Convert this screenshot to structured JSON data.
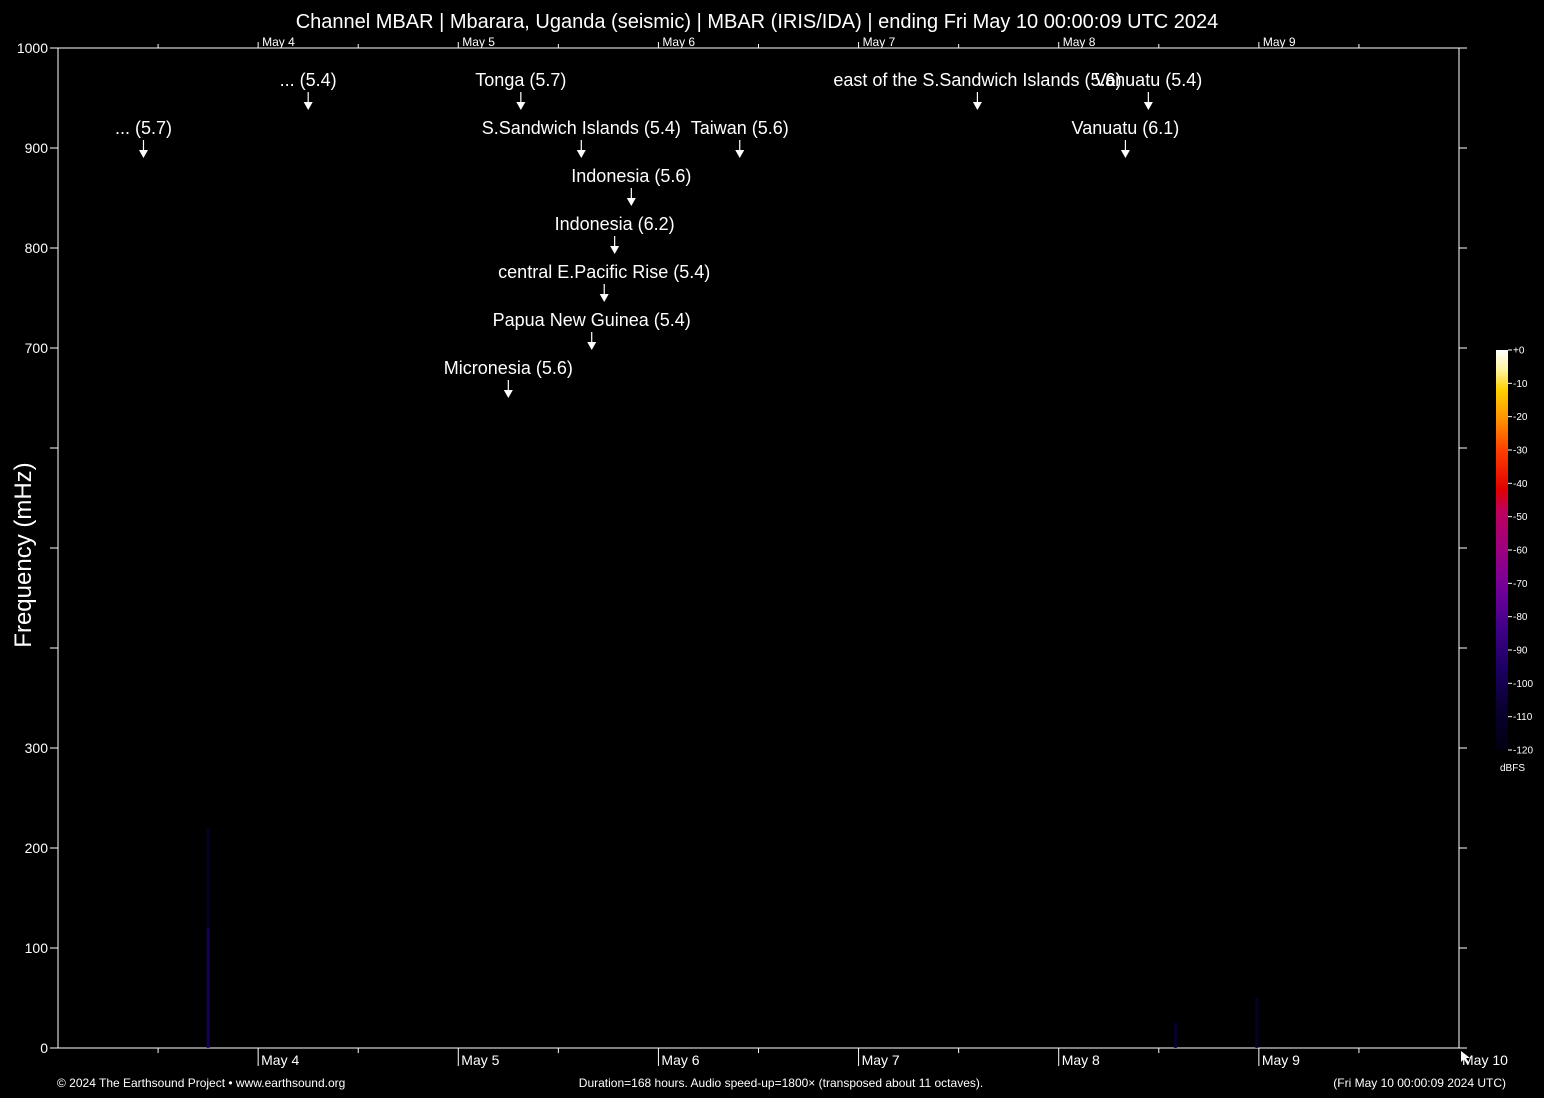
{
  "chart_data": {
    "type": "heatmap",
    "title": "Channel MBAR | Mbarara, Uganda (seismic) | MBAR (IRIS/IDA) | ending Fri May 10 00:00:09 UTC 2024",
    "ylabel": "Frequency (mHz)",
    "ylim": [
      0,
      1000
    ],
    "y_ticks": [
      0,
      100,
      200,
      300,
      700,
      800,
      900,
      1000
    ],
    "y_tick_positions": [
      0,
      100,
      200,
      300,
      400,
      500,
      600,
      700,
      800,
      900,
      1000
    ],
    "x_start": "2024-05-03T00:00:09Z",
    "x_end": "2024-05-10T00:00:09Z",
    "x_date_labels": [
      "May 4",
      "May 5",
      "May 6",
      "May 7",
      "May 8",
      "May 9",
      "May 10"
    ],
    "x_date_values": [
      "2024-05-04",
      "2024-05-05",
      "2024-05-06",
      "2024-05-07",
      "2024-05-08",
      "2024-05-09",
      "2024-05-10"
    ],
    "events": [
      {
        "label": "... (5.7)",
        "time": "2024-05-03 10:15",
        "row": 2
      },
      {
        "label": "... (5.4)",
        "time": "2024-05-04 06:00",
        "row": 1
      },
      {
        "label": "Tonga (5.7)",
        "time": "2024-05-05 07:30",
        "row": 1
      },
      {
        "label": "S.Sandwich Islands (5.4)",
        "time": "2024-05-05 14:45",
        "row": 2
      },
      {
        "label": "Indonesia (5.6)",
        "time": "2024-05-05 20:45",
        "row": 3
      },
      {
        "label": "Indonesia (6.2)",
        "time": "2024-05-05 18:45",
        "row": 4
      },
      {
        "label": "central E.Pacific Rise (5.4)",
        "time": "2024-05-05 17:30",
        "row": 5
      },
      {
        "label": "Papua New Guinea (5.4)",
        "time": "2024-05-05 16:00",
        "row": 6
      },
      {
        "label": "Micronesia (5.6)",
        "time": "2024-05-05 06:00",
        "row": 7
      },
      {
        "label": "Taiwan (5.6)",
        "time": "2024-05-06 09:45",
        "row": 2
      },
      {
        "label": "east of the S.Sandwich Islands (5.6)",
        "time": "2024-05-07 14:15",
        "row": 1
      },
      {
        "label": "Vanuatu (5.4)",
        "time": "2024-05-08 10:45",
        "row": 1
      },
      {
        "label": "Vanuatu (6.1)",
        "time": "2024-05-08 08:00",
        "row": 2
      }
    ],
    "colorbar": {
      "unit": "dBFS",
      "ticks": [
        "+0",
        "-10",
        "-20",
        "-30",
        "-40",
        "-50",
        "-60",
        "-70",
        "-80",
        "-90",
        "-100",
        "-110",
        "-120"
      ],
      "colors": [
        "#ffffff",
        "#fff4a0",
        "#ffd000",
        "#ff8c00",
        "#ff4000",
        "#e00000",
        "#c0005a",
        "#9c0080",
        "#70009a",
        "#3e0088",
        "#1a0060",
        "#0a0030",
        "#000010"
      ]
    },
    "signals": [
      {
        "time": "2024-05-03 18:00",
        "f_min": 0,
        "f_max": 120,
        "level": -95
      },
      {
        "time": "2024-05-03 18:00",
        "f_min": 120,
        "f_max": 220,
        "level": -110
      },
      {
        "time": "2024-05-08 14:00",
        "f_min": 0,
        "f_max": 25,
        "level": -108
      },
      {
        "time": "2024-05-08 23:45",
        "f_min": 0,
        "f_max": 50,
        "level": -112
      }
    ]
  },
  "footer": {
    "copyright": "© 2024 The Earthsound Project • www.earthsound.org",
    "duration": "Duration=168 hours. Audio speed-up=1800× (transposed about 11 octaves).",
    "end_time": "(Fri May 10 00:00:09 2024 UTC)"
  }
}
